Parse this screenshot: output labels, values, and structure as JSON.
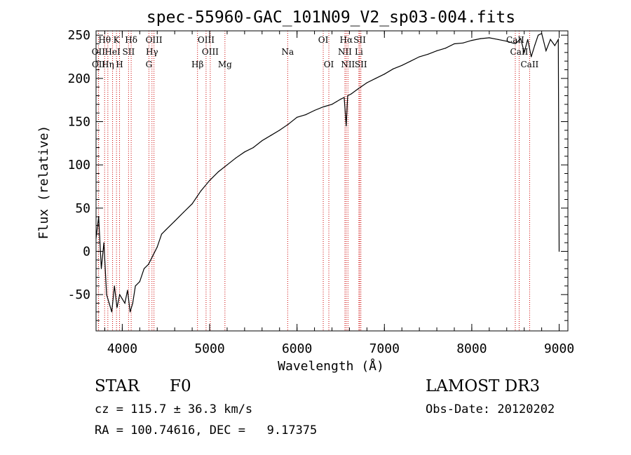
{
  "chart_data": {
    "type": "line",
    "title": "spec-55960-GAC_101N09_V2_sp03-004.fits",
    "xlabel": "Wavelength (Å)",
    "ylabel": "Flux (relative)",
    "xlim": [
      3700,
      9100
    ],
    "ylim": [
      -92,
      255
    ],
    "x_ticks": [
      4000,
      5000,
      6000,
      7000,
      8000,
      9000
    ],
    "y_ticks": [
      -50,
      0,
      50,
      100,
      150,
      200,
      250
    ],
    "line_color": "#000000",
    "marker_color": "#cc0000",
    "line_markers": [
      {
        "label": "Hθ",
        "wavelength": 3798,
        "row": 0
      },
      {
        "label": "K",
        "wavelength": 3934,
        "row": 0
      },
      {
        "label": "Hδ",
        "wavelength": 4102,
        "row": 0
      },
      {
        "label": "OIII",
        "wavelength": 4363,
        "row": 0
      },
      {
        "label": "OIII",
        "wavelength": 4959,
        "row": 0
      },
      {
        "label": "OI",
        "wavelength": 6300,
        "row": 0
      },
      {
        "label": "Hα",
        "wavelength": 6563,
        "row": 0
      },
      {
        "label": "SII",
        "wavelength": 6717,
        "row": 0
      },
      {
        "label": "CaII",
        "wavelength": 8498,
        "row": 0
      },
      {
        "label": "OII",
        "wavelength": 3727,
        "row": 1
      },
      {
        "label": "HeI",
        "wavelength": 3889,
        "row": 1
      },
      {
        "label": "SII",
        "wavelength": 4072,
        "row": 1
      },
      {
        "label": "Hγ",
        "wavelength": 4340,
        "row": 1
      },
      {
        "label": "OIII",
        "wavelength": 5007,
        "row": 1
      },
      {
        "label": "Na",
        "wavelength": 5893,
        "row": 1
      },
      {
        "label": "NII",
        "wavelength": 6548,
        "row": 1
      },
      {
        "label": "Li",
        "wavelength": 6708,
        "row": 1
      },
      {
        "label": "CaII",
        "wavelength": 8542,
        "row": 1
      },
      {
        "label": "OII",
        "wavelength": 3729,
        "row": 2
      },
      {
        "label": "Hη",
        "wavelength": 3835,
        "row": 2
      },
      {
        "label": "H",
        "wavelength": 3969,
        "row": 2
      },
      {
        "label": "G",
        "wavelength": 4305,
        "row": 2
      },
      {
        "label": "Hβ",
        "wavelength": 4861,
        "row": 2
      },
      {
        "label": "Mg",
        "wavelength": 5175,
        "row": 2
      },
      {
        "label": "OI",
        "wavelength": 6364,
        "row": 2
      },
      {
        "label": "NII",
        "wavelength": 6583,
        "row": 2
      },
      {
        "label": "SII",
        "wavelength": 6731,
        "row": 2
      },
      {
        "label": "CaII",
        "wavelength": 8662,
        "row": 2
      }
    ],
    "series": [
      {
        "name": "flux",
        "x": [
          3700,
          3730,
          3760,
          3790,
          3820,
          3850,
          3880,
          3910,
          3940,
          3970,
          4000,
          4030,
          4060,
          4090,
          4120,
          4150,
          4200,
          4250,
          4300,
          4350,
          4400,
          4450,
          4500,
          4600,
          4700,
          4800,
          4900,
          5000,
          5100,
          5200,
          5300,
          5400,
          5500,
          5600,
          5700,
          5800,
          5900,
          6000,
          6100,
          6200,
          6300,
          6400,
          6450,
          6500,
          6540,
          6563,
          6580,
          6620,
          6700,
          6800,
          6900,
          7000,
          7100,
          7200,
          7300,
          7400,
          7500,
          7600,
          7700,
          7800,
          7900,
          8000,
          8100,
          8200,
          8300,
          8400,
          8500,
          8560,
          8600,
          8640,
          8680,
          8720,
          8760,
          8800,
          8850,
          8900,
          8950,
          8990,
          9000
        ],
        "y": [
          15,
          40,
          -20,
          10,
          -50,
          -60,
          -70,
          -40,
          -65,
          -50,
          -55,
          -60,
          -45,
          -70,
          -60,
          -40,
          -35,
          -20,
          -15,
          -5,
          5,
          20,
          25,
          35,
          45,
          55,
          70,
          82,
          92,
          100,
          108,
          115,
          120,
          128,
          134,
          140,
          147,
          155,
          158,
          163,
          167,
          170,
          173,
          176,
          178,
          145,
          180,
          182,
          188,
          195,
          200,
          205,
          211,
          215,
          220,
          225,
          228,
          232,
          235,
          240,
          241,
          244,
          246,
          247,
          245,
          243,
          240,
          246,
          230,
          245,
          225,
          238,
          250,
          252,
          232,
          245,
          238,
          245,
          0
        ]
      }
    ]
  },
  "footer": {
    "object_class": "STAR",
    "subclass": "F0",
    "survey": "LAMOST DR3",
    "cz": "cz = 115.7 ± 36.3 km/s",
    "obs_date": "Obs-Date: 20120202",
    "coords": "RA = 100.74616, DEC =   9.17375"
  }
}
